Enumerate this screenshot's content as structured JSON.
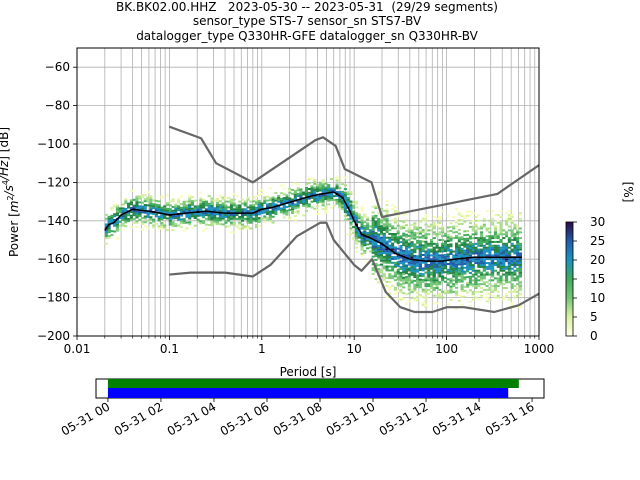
{
  "title_lines": [
    "BK.BK02.00.HHZ   2023-05-30 -- 2023-05-31  (29/29 segments)",
    "sensor_type STS-7 sensor_sn STS7-BV",
    "datalogger_type Q330HR-GFE datalogger_sn Q330HR-BV"
  ],
  "chart_data": [
    {
      "type": "heatmap",
      "xlabel": "Period [s]",
      "ylabel_html": "Power [m²/s⁴/Hz] [dB]",
      "xscale": "log",
      "xlim": [
        0.01,
        1000
      ],
      "ylim": [
        -200,
        -50
      ],
      "xticks": [
        {
          "v": 0.01,
          "label": "0.01"
        },
        {
          "v": 0.1,
          "label": "0.1"
        },
        {
          "v": 1,
          "label": "1"
        },
        {
          "v": 10,
          "label": "10"
        },
        {
          "v": 100,
          "label": "100"
        },
        {
          "v": 1000,
          "label": "1000"
        }
      ],
      "yticks": [
        {
          "v": -60,
          "label": "−60"
        },
        {
          "v": -80,
          "label": "−80"
        },
        {
          "v": -100,
          "label": "−100"
        },
        {
          "v": -120,
          "label": "−120"
        },
        {
          "v": -140,
          "label": "−140"
        },
        {
          "v": -160,
          "label": "−160"
        },
        {
          "v": -180,
          "label": "−180"
        },
        {
          "v": -200,
          "label": "−200"
        }
      ],
      "grid": true,
      "noise_models": [
        {
          "name": "high",
          "color": "#666666",
          "points": [
            [
              0.1,
              -91
            ],
            [
              0.22,
              -97
            ],
            [
              0.32,
              -110
            ],
            [
              0.8,
              -120
            ],
            [
              3.8,
              -98
            ],
            [
              4.6,
              -96.5
            ],
            [
              6.3,
              -101
            ],
            [
              7.9,
              -113
            ],
            [
              15.4,
              -120
            ],
            [
              20,
              -138
            ],
            [
              354.8,
              -126
            ],
            [
              1000,
              -111
            ]
          ]
        },
        {
          "name": "low",
          "color": "#666666",
          "points": [
            [
              0.1,
              -168
            ],
            [
              0.17,
              -167
            ],
            [
              0.4,
              -167
            ],
            [
              0.8,
              -169
            ],
            [
              1.24,
              -163
            ],
            [
              2.4,
              -148
            ],
            [
              4.3,
              -141
            ],
            [
              5,
              -141
            ],
            [
              6,
              -150
            ],
            [
              10,
              -163
            ],
            [
              12,
              -166
            ],
            [
              15.6,
              -160
            ],
            [
              21.9,
              -177
            ],
            [
              31.6,
              -185
            ],
            [
              45,
              -187.5
            ],
            [
              70,
              -187.5
            ],
            [
              101,
              -185
            ],
            [
              154,
              -185
            ],
            [
              328,
              -187.5
            ],
            [
              600,
              -184
            ],
            [
              1000,
              -178
            ]
          ]
        }
      ],
      "mode_line": {
        "color": "#000000",
        "points": [
          [
            0.02,
            -145
          ],
          [
            0.022,
            -142
          ],
          [
            0.025,
            -141
          ],
          [
            0.03,
            -137
          ],
          [
            0.04,
            -134
          ],
          [
            0.06,
            -135
          ],
          [
            0.08,
            -136
          ],
          [
            0.1,
            -137
          ],
          [
            0.15,
            -136
          ],
          [
            0.25,
            -135
          ],
          [
            0.4,
            -136
          ],
          [
            0.8,
            -136
          ],
          [
            1.0,
            -134
          ],
          [
            1.3,
            -133
          ],
          [
            1.8,
            -131
          ],
          [
            2.5,
            -129
          ],
          [
            3.5,
            -127
          ],
          [
            4.5,
            -126
          ],
          [
            6,
            -125
          ],
          [
            7.5,
            -128
          ],
          [
            9,
            -135
          ],
          [
            10,
            -140
          ],
          [
            12,
            -147
          ],
          [
            15,
            -149
          ],
          [
            20,
            -152
          ],
          [
            28,
            -157
          ],
          [
            40,
            -160
          ],
          [
            60,
            -161
          ],
          [
            90,
            -161
          ],
          [
            120,
            -160
          ],
          [
            200,
            -159
          ],
          [
            400,
            -159
          ],
          [
            650,
            -159
          ]
        ]
      },
      "colorbar": {
        "label": "[%]",
        "range": [
          0,
          30
        ],
        "ticks": [
          {
            "v": 0,
            "label": "0"
          },
          {
            "v": 5,
            "label": "5"
          },
          {
            "v": 10,
            "label": "10"
          },
          {
            "v": 15,
            "label": "15"
          },
          {
            "v": 20,
            "label": "20"
          },
          {
            "v": 25,
            "label": "25"
          },
          {
            "v": 30,
            "label": "30"
          }
        ]
      }
    },
    {
      "type": "timeline",
      "xlim_hours": [
        -0.45,
        16.45
      ],
      "ticks": [
        {
          "v": 0,
          "label": "05-31 00"
        },
        {
          "v": 2,
          "label": "05-31 02"
        },
        {
          "v": 4,
          "label": "05-31 04"
        },
        {
          "v": 6,
          "label": "05-31 06"
        },
        {
          "v": 8,
          "label": "05-31 08"
        },
        {
          "v": 10,
          "label": "05-31 10"
        },
        {
          "v": 12,
          "label": "05-31 12"
        },
        {
          "v": 14,
          "label": "05-31 14"
        },
        {
          "v": 16,
          "label": "05-31 16"
        }
      ],
      "bars": [
        {
          "name": "data",
          "color": "#008000",
          "start": 0,
          "end": 15.5
        },
        {
          "name": "psd",
          "color": "#0000ff",
          "start": 0,
          "end": 15.1
        }
      ]
    }
  ]
}
